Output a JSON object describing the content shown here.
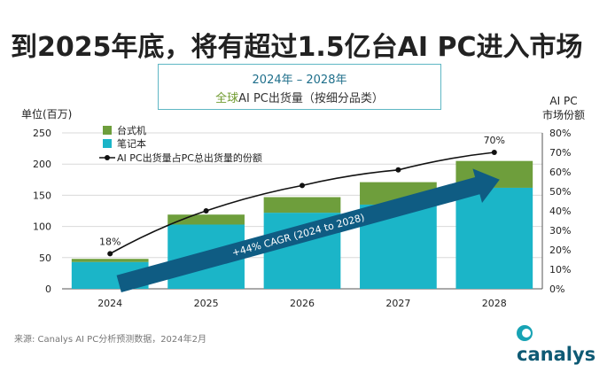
{
  "headline": "到2025年底，将有超过1.5亿台AI PC进入市场",
  "subtitle": {
    "line1": "2024年 – 2028年",
    "line2_highlight": "全球",
    "line2_rest": "AI PC出货量（按细分品类）"
  },
  "left_axis_title": "单位(百万)",
  "right_axis_title_1": "AI PC",
  "right_axis_title_2": "市场份额",
  "footer": "来源: Canalys AI PC分析预测数据，2024年2月",
  "logo_text": "canalys",
  "colors": {
    "desktop": "#6e9e3c",
    "notebook": "#1bb5c8",
    "line": "#111111",
    "arrow": "#0f5c83"
  },
  "chart_data": {
    "type": "bar",
    "categories": [
      "2024",
      "2025",
      "2026",
      "2027",
      "2028"
    ],
    "series": [
      {
        "name": "笔记本",
        "values": [
          43,
          103,
          122,
          135,
          162
        ]
      },
      {
        "name": "台式机",
        "values": [
          5,
          16,
          25,
          36,
          43
        ]
      }
    ],
    "line_series": {
      "name": "AI PC出货量占PC总出货量的份额",
      "values": [
        18,
        40,
        53,
        61,
        70
      ]
    },
    "annotations": {
      "first": "18%",
      "last": "70%",
      "arrow": "+44% CAGR (2024 to 2028)"
    },
    "ylim": [
      0,
      250
    ],
    "yticks": [
      0,
      50,
      100,
      150,
      200,
      250
    ],
    "y2lim": [
      0,
      80
    ],
    "y2ticks": [
      "0%",
      "10%",
      "20%",
      "30%",
      "40%",
      "50%",
      "60%",
      "70%",
      "80%"
    ],
    "legend_position": "top-left",
    "grid": true
  }
}
